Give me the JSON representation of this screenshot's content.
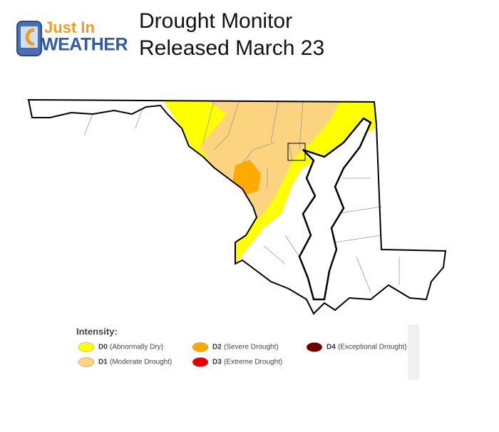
{
  "logo": {
    "line1": "Just In",
    "line2": "WEATHER"
  },
  "title": "Drought Monitor",
  "subtitle": "Released March 23",
  "legend": {
    "title": "Intensity:",
    "items": [
      {
        "code": "D0",
        "label": "(Abnormally Dry)",
        "color": "#ffff00"
      },
      {
        "code": "D1",
        "label": "(Moderate Drought)",
        "color": "#fcd37f"
      },
      {
        "code": "D2",
        "label": "(Severe Drought)",
        "color": "#ffaa00"
      },
      {
        "code": "D3",
        "label": "(Extreme Drought)",
        "color": "#e60000"
      },
      {
        "code": "D4",
        "label": "(Exceptional Drought)",
        "color": "#730000"
      }
    ]
  }
}
